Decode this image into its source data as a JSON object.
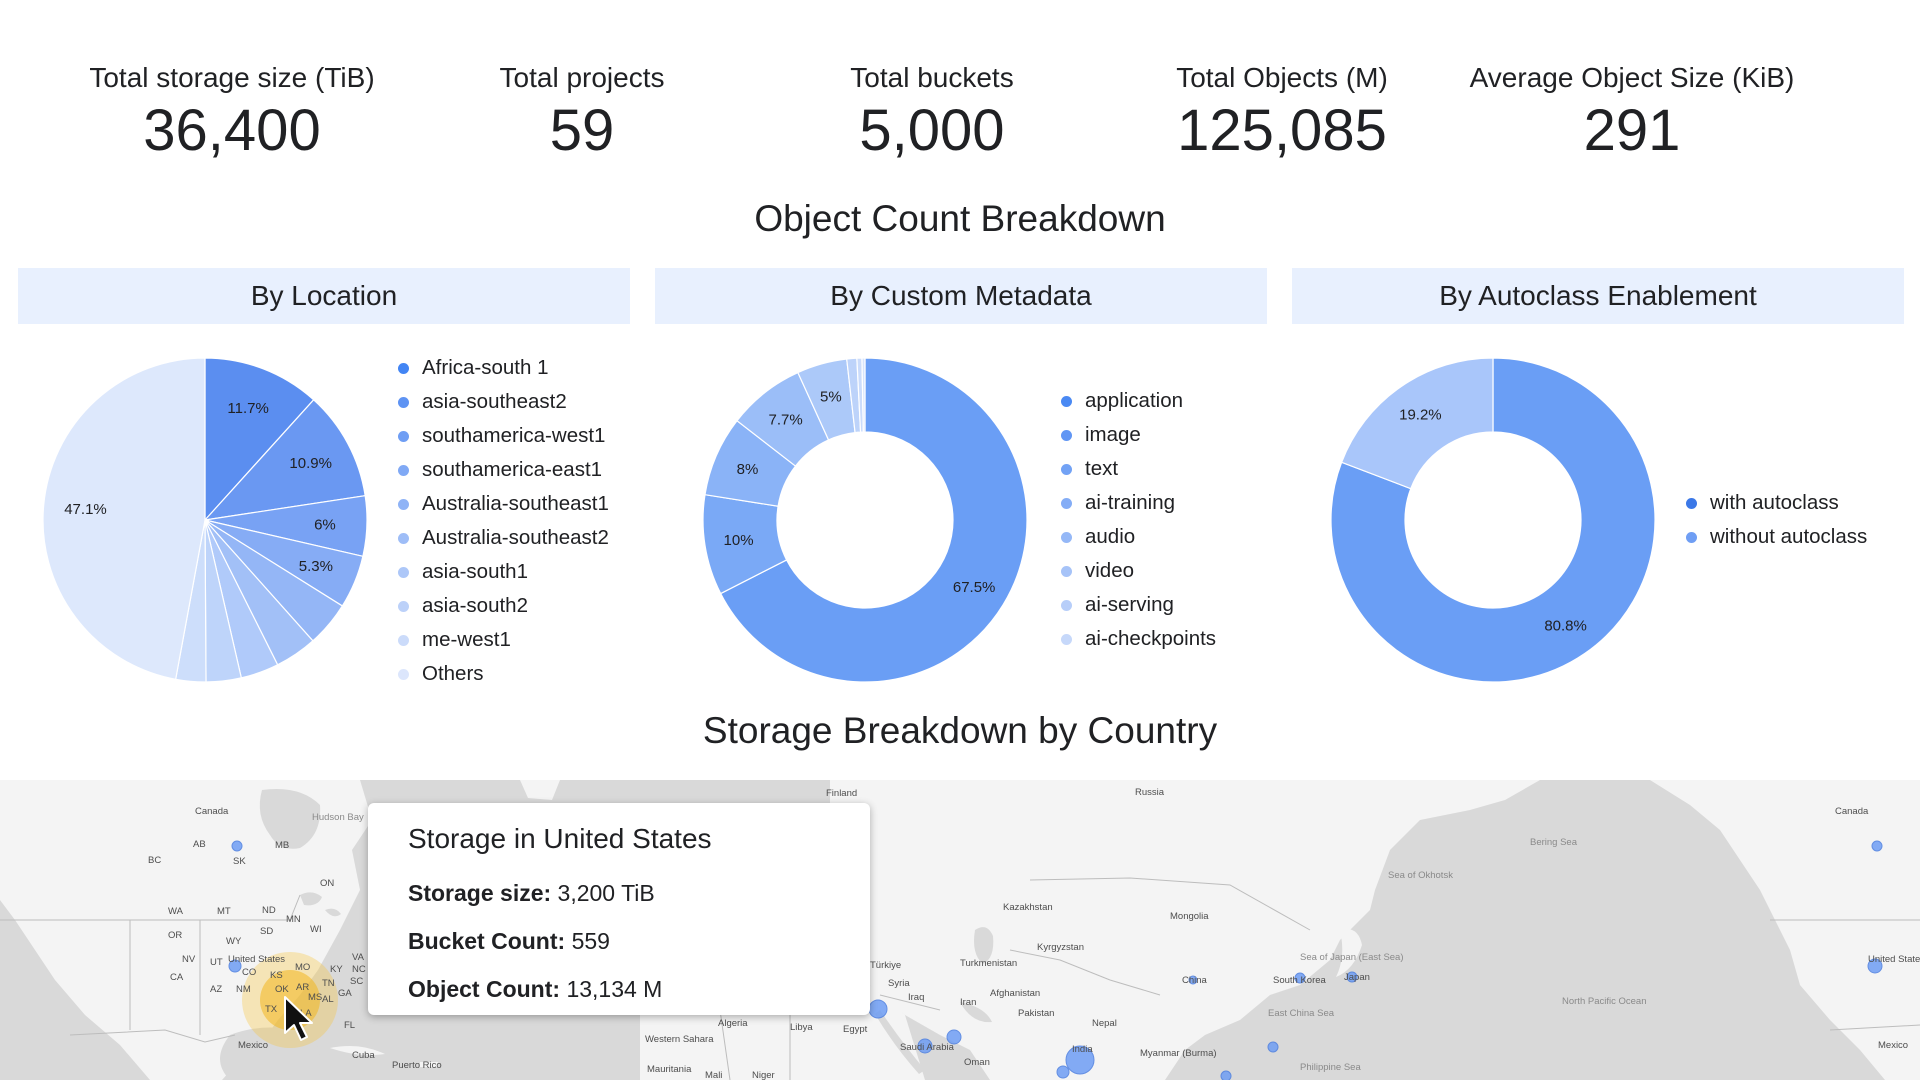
{
  "kpis": [
    {
      "label": "Total storage size (TiB)",
      "value": "36,400"
    },
    {
      "label": "Total projects",
      "value": "59"
    },
    {
      "label": "Total buckets",
      "value": "5,000"
    },
    {
      "label": "Total Objects (M)",
      "value": "125,085"
    },
    {
      "label": "Average Object Size (KiB)",
      "value": "291"
    }
  ],
  "object_breakdown_title": "Object Count Breakdown",
  "panels": {
    "location": "By Location",
    "metadata": "By Custom Metadata",
    "autoclass": "By Autoclass Enablement"
  },
  "storage_title": "Storage Breakdown by Country",
  "colors": {
    "panel_header": "#e8f0fe",
    "primary": "#4285f4",
    "map_water": "#d9d9d9",
    "map_land": "#f4f4f4",
    "highlight": "#f6c642"
  },
  "chart_data": [
    {
      "type": "pie",
      "title": "By Location",
      "labels": [
        "Africa-south 1",
        "asia-southeast2",
        "southamerica-west1",
        "southamerica-east1",
        "Australia-southeast1",
        "Australia-southeast2",
        "asia-south1",
        "asia-south2",
        "me-west1",
        "Others"
      ],
      "values": [
        11.7,
        10.9,
        6.0,
        5.3,
        4.5,
        4.2,
        3.8,
        3.5,
        3.0,
        47.1
      ],
      "value_labels": [
        "11.7%",
        "10.9%",
        "6%",
        "5.3%",
        "",
        "",
        "",
        "",
        "",
        "47.1%"
      ],
      "colors": [
        "#5b8ef0",
        "#6a98f2",
        "#78a2f4",
        "#86acf5",
        "#94b6f6",
        "#a2c0f7",
        "#b0cafa",
        "#bed4fa",
        "#cddefb",
        "#dde8fc"
      ]
    },
    {
      "type": "pie",
      "title": "By Custom Metadata",
      "donut": true,
      "labels": [
        "application",
        "image",
        "text",
        "ai-training",
        "audio",
        "video",
        "ai-serving",
        "ai-checkpoints"
      ],
      "values": [
        67.5,
        10.0,
        8.0,
        7.7,
        5.0,
        1.0,
        0.5,
        0.3
      ],
      "value_labels": [
        "67.5%",
        "10%",
        "8%",
        "7.7%",
        "5%",
        "",
        "",
        ""
      ],
      "colors": [
        "#6a9ef5",
        "#7aa9f6",
        "#8ab3f7",
        "#9bbef8",
        "#acc9f9",
        "#bdd3fa",
        "#cbdcfb",
        "#d8e5fc"
      ]
    },
    {
      "type": "pie",
      "title": "By Autoclass Enablement",
      "donut": true,
      "labels": [
        "with autoclass",
        "without autoclass"
      ],
      "values": [
        80.8,
        19.2
      ],
      "value_labels": [
        "80.8%",
        "19.2%"
      ],
      "colors": [
        "#6a9ef5",
        "#a9c6fa"
      ]
    }
  ],
  "legend_dot_colors": {
    "location": [
      "#4285f4",
      "#5e93f3",
      "#6f9ef4",
      "#80a9f5",
      "#8fb3f6",
      "#9ebdf7",
      "#adc7f8",
      "#bcd1f9",
      "#cbdbfa",
      "#dce6fc"
    ],
    "metadata": [
      "#4a89f3",
      "#6096f4",
      "#72a2f5",
      "#84adf6",
      "#95b8f7",
      "#a6c3f8",
      "#b7cef9",
      "#c6d8fa"
    ],
    "autoclass": [
      "#3b78e7",
      "#6f9ef4"
    ]
  },
  "map": {
    "labels": [
      "Canada",
      "Hudson Bay",
      "AB",
      "MB",
      "SK",
      "BC",
      "ON",
      "WA",
      "MT",
      "ND",
      "MN",
      "OR",
      "SD",
      "WI",
      "WY",
      "United States",
      "NV",
      "UT",
      "CO",
      "KS",
      "MO",
      "CA",
      "AZ",
      "NM",
      "OK",
      "AR",
      "TN",
      "TX",
      "LA",
      "MS",
      "AL",
      "GA",
      "SC",
      "NC",
      "VA",
      "KY",
      "FL",
      "Mexico",
      "Cuba",
      "Puerto Rico",
      "Finland",
      "Russia",
      "Kazakhstan",
      "Mongolia",
      "Kyrgyzstan",
      "Turkmenistan",
      "Afghanistan",
      "Pakistan",
      "Nepal",
      "India",
      "Myanmar (Burma)",
      "Iran",
      "Iraq",
      "Syria",
      "Türkiye",
      "Egypt",
      "Libya",
      "Algeria",
      "Western Sahara",
      "Mauritania",
      "Mali",
      "Niger",
      "Saudi Arabia",
      "Oman",
      "China",
      "South Korea",
      "Japan",
      "Sea of Okhotsk",
      "Bering Sea",
      "Sea of Japan (East Sea)",
      "East China Sea",
      "Philippine Sea",
      "North Pacific Ocean",
      "Canada",
      "United State",
      "Mexico"
    ],
    "tooltip": {
      "title": "Storage in United States",
      "storage_label": "Storage size:",
      "storage_value": "3,200 TiB",
      "bucket_label": "Bucket Count:",
      "bucket_value": "559",
      "object_label": "Object Count:",
      "object_value": "13,134 M"
    }
  }
}
